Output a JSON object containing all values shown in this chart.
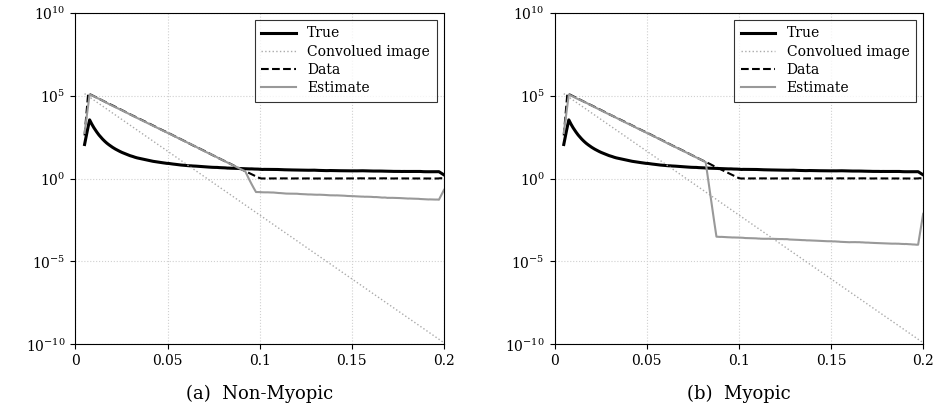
{
  "title_left": "(a)  Non-Myopic",
  "title_right": "(b)  Myopic",
  "xlim": [
    0,
    0.2
  ],
  "ylim_log": [
    -10,
    10
  ],
  "xticks": [
    0,
    0.05,
    0.1,
    0.15,
    0.2
  ],
  "yticks_exp": [
    -10,
    -5,
    0,
    5,
    10
  ],
  "legend_labels": [
    "True",
    "Convolued image",
    "Data",
    "Estimate"
  ],
  "line_styles": [
    {
      "color": "#000000",
      "lw": 2.2,
      "ls": "solid"
    },
    {
      "color": "#aaaaaa",
      "lw": 1.0,
      "ls": "dotted"
    },
    {
      "color": "#000000",
      "lw": 1.5,
      "ls": "dashed"
    },
    {
      "color": "#999999",
      "lw": 1.5,
      "ls": "solid"
    }
  ],
  "background_color": "#ffffff",
  "grid_color": "#d0d0d0",
  "title_fontsize": 13,
  "legend_fontsize": 10,
  "tick_fontsize": 10
}
